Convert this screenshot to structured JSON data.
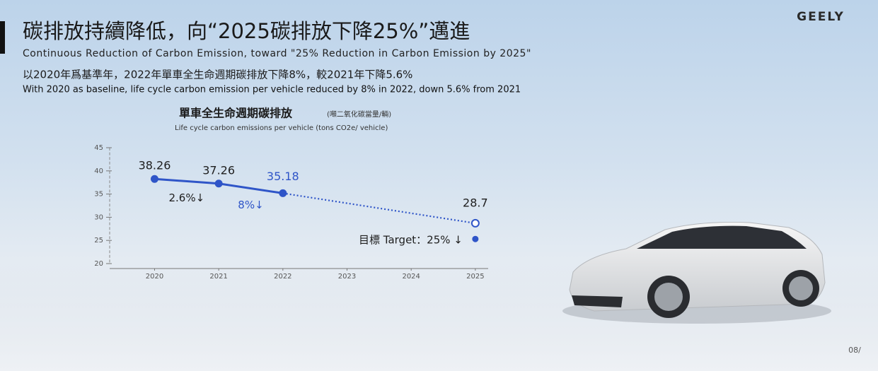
{
  "header": {
    "logo": "GEELY",
    "title": "碳排放持續降低，向“2025碳排放下降25%”邁進",
    "subtitle": "Continuous Reduction of Carbon Emission, toward \"25% Reduction in Carbon Emission by 2025\"",
    "summary_zh": "以2020年爲基準年，2022年單車全生命週期碳排放下降8%，較2021年下降5.6%",
    "summary_en": "With 2020 as baseline, life cycle carbon emission per vehicle reduced by 8% in 2022, down 5.6% from 2021"
  },
  "footer": {
    "page": "08/"
  },
  "chart_data": {
    "type": "line",
    "title": "單車全生命週期碳排放",
    "title_note": "(噸二氧化碳當量/輛)",
    "subtitle": "Life cycle carbon emissions per vehicle (tons CO2e/ vehicle)",
    "x": [
      2020,
      2021,
      2022,
      2025
    ],
    "values": [
      38.26,
      37.26,
      35.18,
      28.7
    ],
    "label_colors": [
      "#1e1e1e",
      "#1e1e1e",
      "#2f55c8",
      "#1e1e1e"
    ],
    "color": "#2f55c8",
    "projected_from": 2022,
    "xlim": [
      2019.3,
      2025.2
    ],
    "xticks": [
      2020,
      2021,
      2022,
      2023,
      2024,
      2025
    ],
    "ylim": [
      20,
      45
    ],
    "yticks": [
      20,
      25,
      30,
      35,
      40,
      45
    ],
    "annotations": [
      {
        "text": "2.6%↓",
        "color": "#1e1e1e"
      },
      {
        "text": "8%↓",
        "color": "#2f55c8"
      }
    ],
    "target": {
      "text": "目標 Target：25% ↓",
      "x": 2025,
      "value": 25.3
    }
  }
}
